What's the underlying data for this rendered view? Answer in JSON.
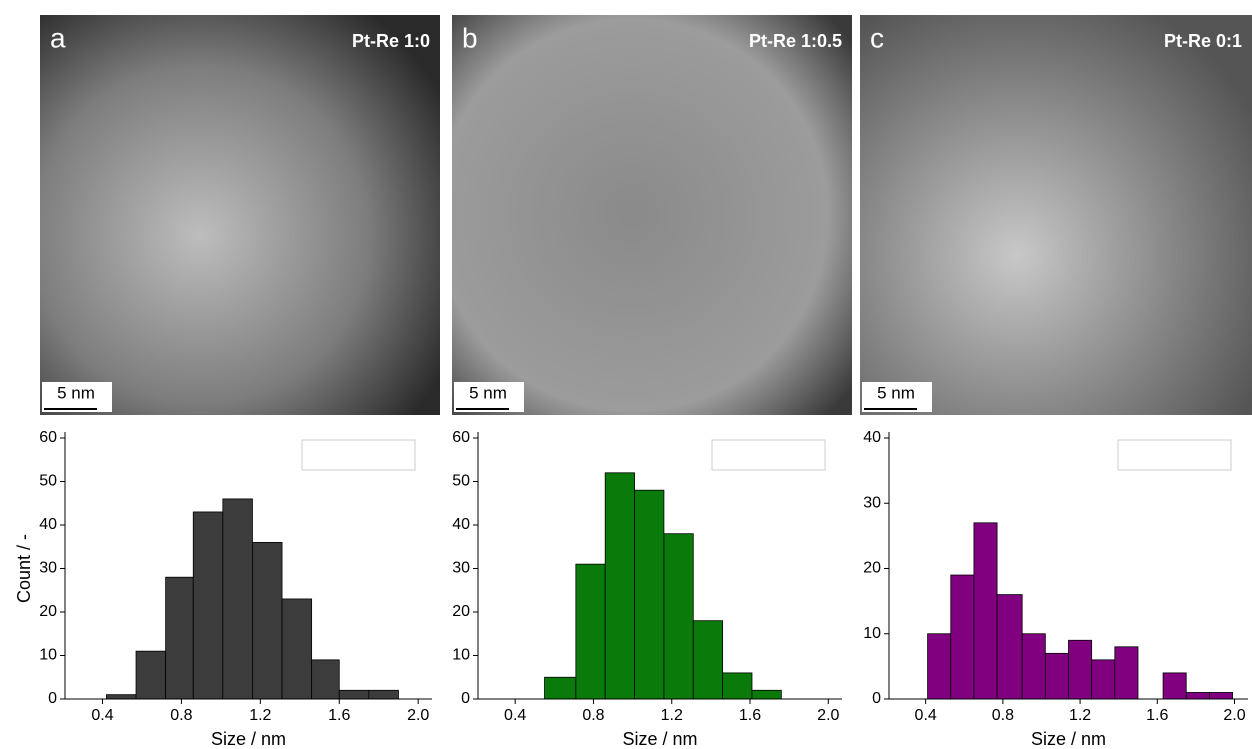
{
  "images": [
    {
      "letter": "a",
      "label": "Pt-Re 1:0",
      "scale": "5 nm"
    },
    {
      "letter": "b",
      "label": "Pt-Re 1:0.5",
      "scale": "5 nm"
    },
    {
      "letter": "c",
      "label": "Pt-Re 0:1",
      "scale": "5 nm"
    }
  ],
  "chart_data": [
    {
      "type": "histogram",
      "y_label": "Count / -",
      "x_label": "Size / nm",
      "color": "#3c3c3c",
      "bins": [
        0.42,
        0.57,
        0.72,
        0.86,
        1.01,
        1.16,
        1.31,
        1.46,
        1.6,
        1.75,
        1.9
      ],
      "values": [
        1,
        11,
        28,
        43,
        46,
        36,
        23,
        9,
        2,
        2
      ],
      "xlim": [
        0.21,
        2.07
      ],
      "xticks": [
        0.4,
        0.8,
        1.2,
        1.6,
        {
          "value": 2,
          "label": "2.0"
        }
      ],
      "ylim": [
        0,
        60
      ],
      "yticks": [
        0,
        10,
        20,
        30,
        40,
        50,
        60
      ]
    },
    {
      "type": "histogram",
      "x_label": "Size / nm",
      "color": "#0a7a0a",
      "bins": [
        0.55,
        0.71,
        0.86,
        1.01,
        1.16,
        1.31,
        1.46,
        1.61,
        1.76
      ],
      "values": [
        5,
        31,
        52,
        48,
        38,
        18,
        6,
        2
      ],
      "xlim": [
        0.21,
        2.07
      ],
      "xticks": [
        0.4,
        0.8,
        1.2,
        1.6,
        {
          "value": 2,
          "label": "2.0"
        }
      ],
      "ylim": [
        0,
        60
      ],
      "yticks": [
        0,
        10,
        20,
        30,
        40,
        50,
        60
      ]
    },
    {
      "type": "histogram",
      "x_label": "Size / nm",
      "color": "#800080",
      "bins": [
        0.41,
        0.53,
        0.65,
        0.77,
        0.9,
        1.02,
        1.14,
        1.26,
        1.38,
        1.5,
        1.63,
        1.75,
        1.87,
        1.99
      ],
      "values": [
        10,
        19,
        27,
        16,
        10,
        7,
        9,
        6,
        8,
        0,
        4,
        1,
        1
      ],
      "xlim": [
        0.21,
        2.07
      ],
      "xticks": [
        0.4,
        0.8,
        1.2,
        1.6,
        {
          "value": 2,
          "label": "2.0"
        }
      ],
      "ylim": [
        0,
        40
      ],
      "yticks": [
        0,
        10,
        20,
        30,
        40
      ]
    }
  ]
}
